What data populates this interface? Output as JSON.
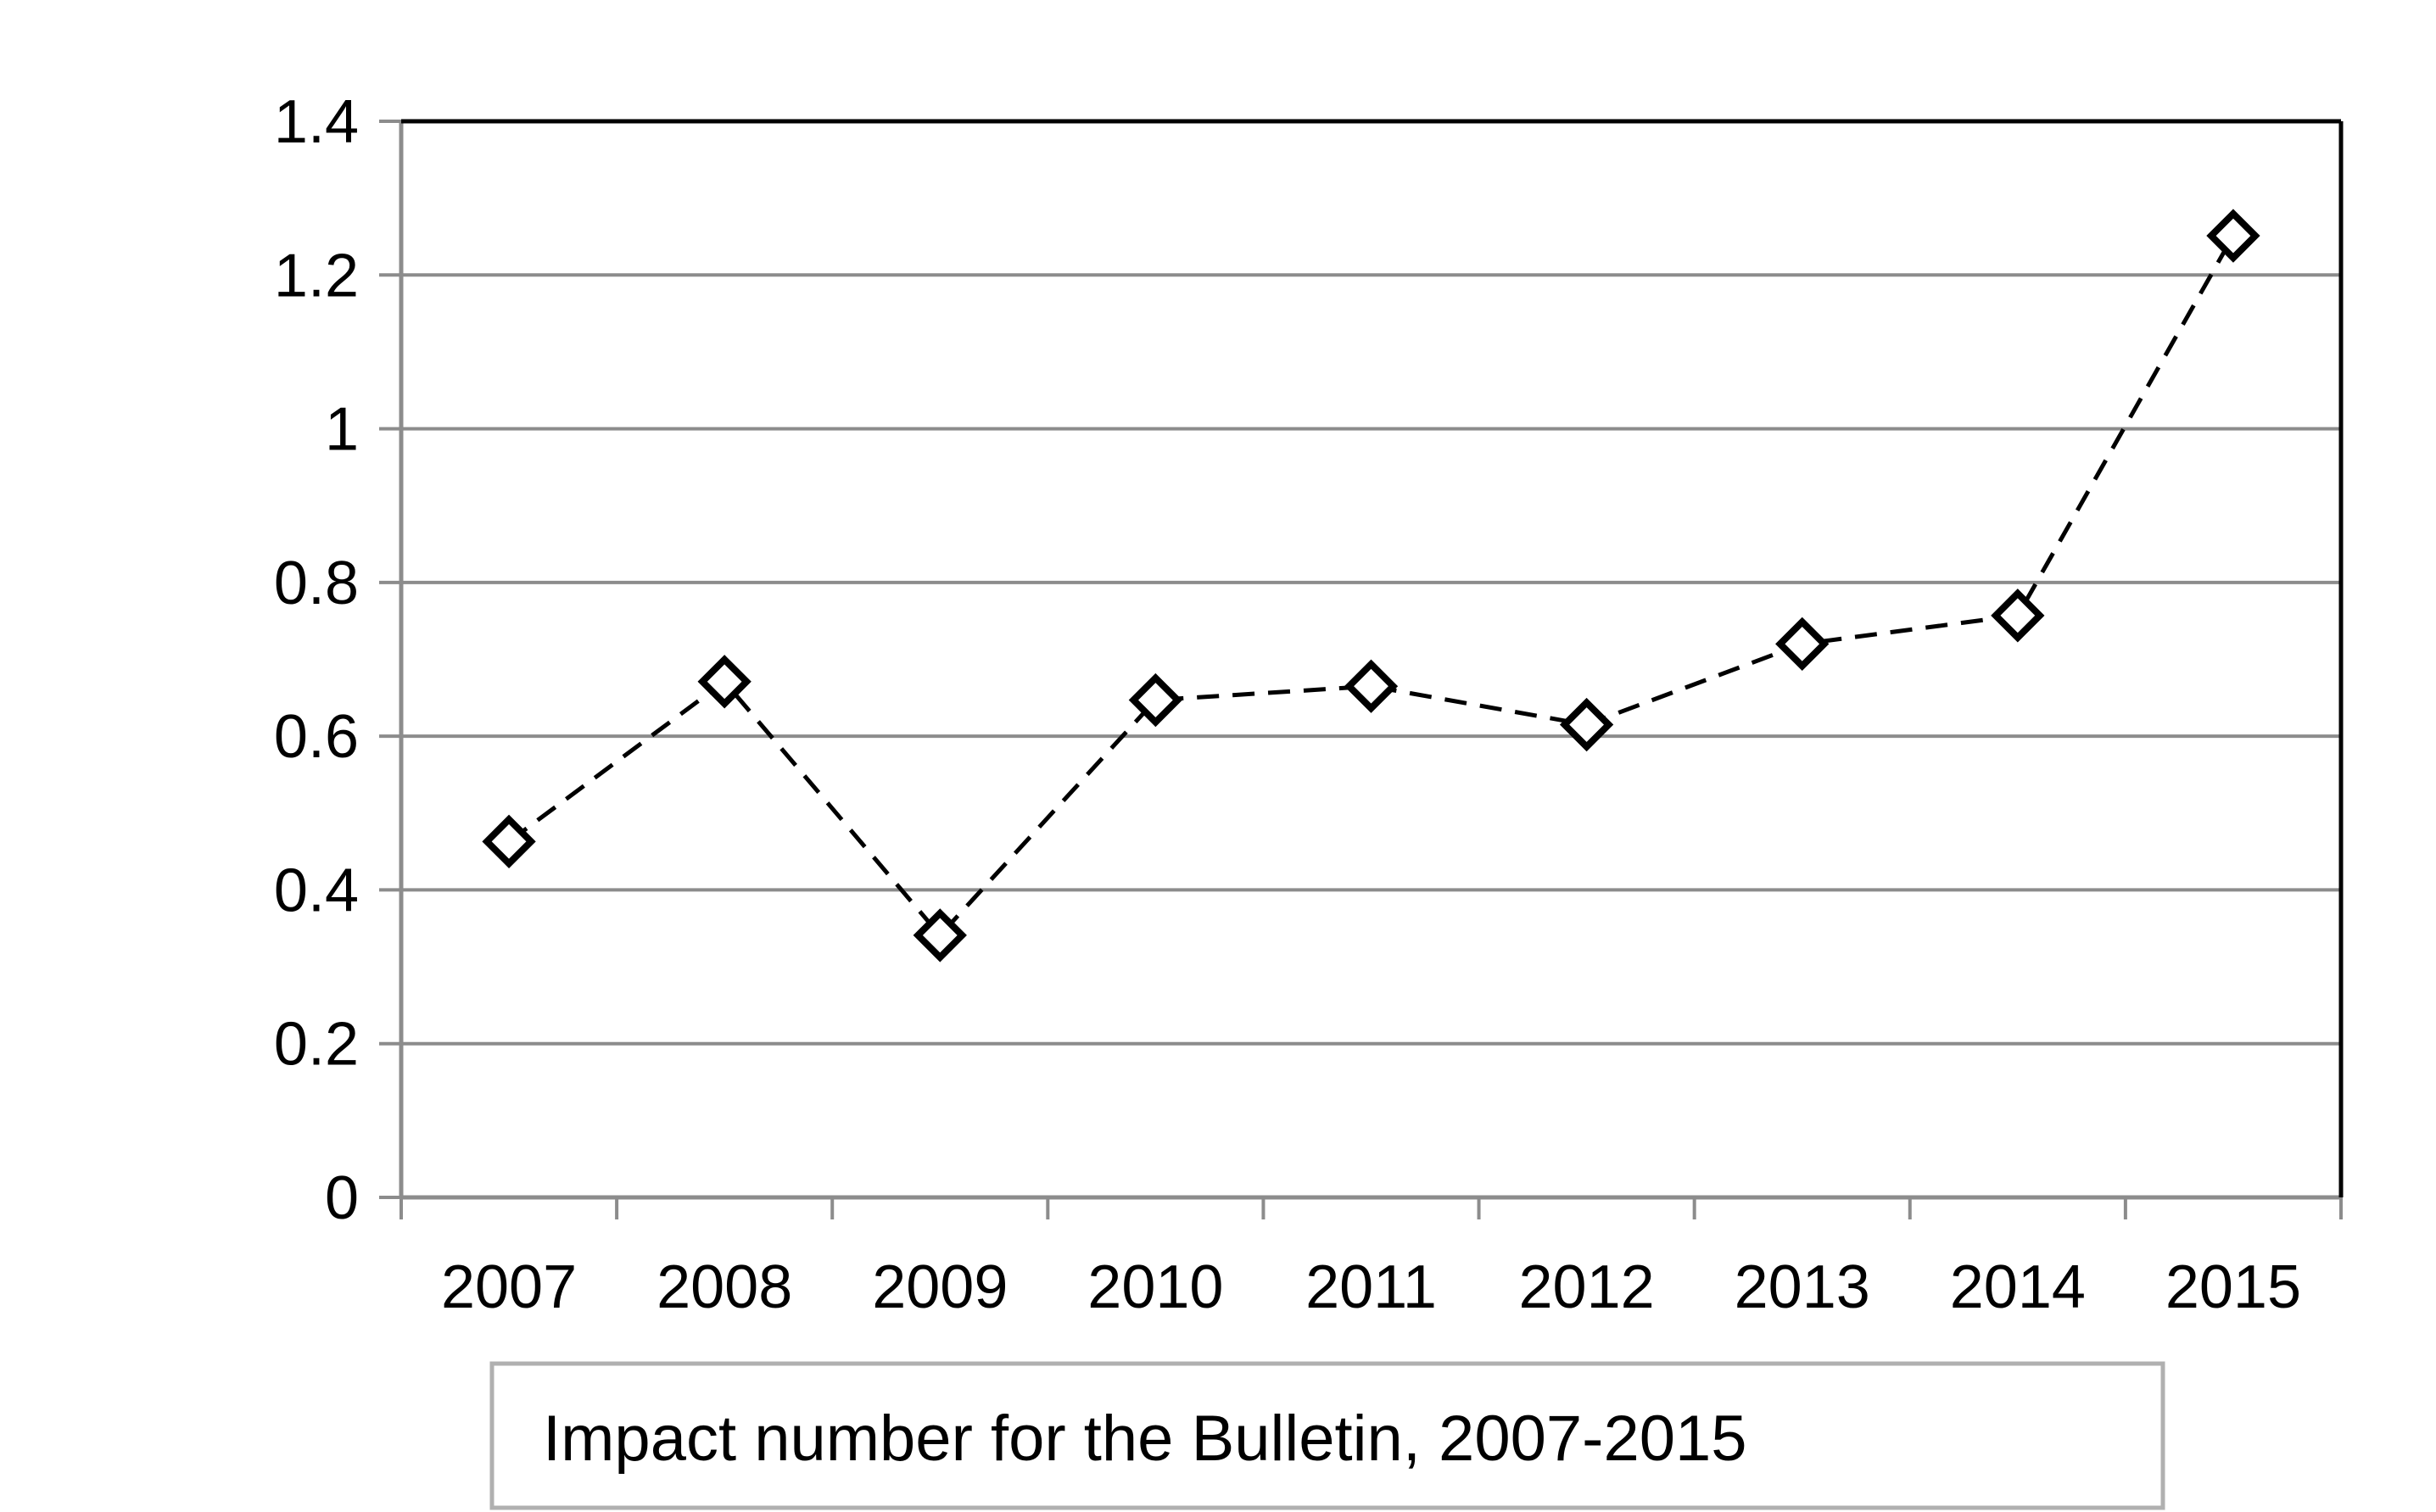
{
  "chart_data": {
    "type": "line",
    "categories": [
      "2007",
      "2008",
      "2009",
      "2010",
      "2011",
      "2012",
      "2013",
      "2014",
      "2015"
    ],
    "series": [
      {
        "name": "Impact number for the Bulletin, 2007-2015",
        "values": [
          0.463,
          0.671,
          0.341,
          0.647,
          0.665,
          0.615,
          0.72,
          0.757,
          1.251
        ]
      }
    ],
    "y_ticks": [
      "0",
      "0.2",
      "0.4",
      "0.6",
      "0.8",
      "1",
      "1.2",
      "1.4"
    ],
    "ylim": [
      0,
      1.4
    ],
    "grid": true,
    "legend_position": "bottom",
    "marker": "diamond",
    "line_style": "dashed",
    "colors": {
      "line": "#000000",
      "grid": "#8c8c8c",
      "axis": "#8c8c8c",
      "frame": "#000000",
      "legend_border": "#b0b0b0"
    }
  }
}
